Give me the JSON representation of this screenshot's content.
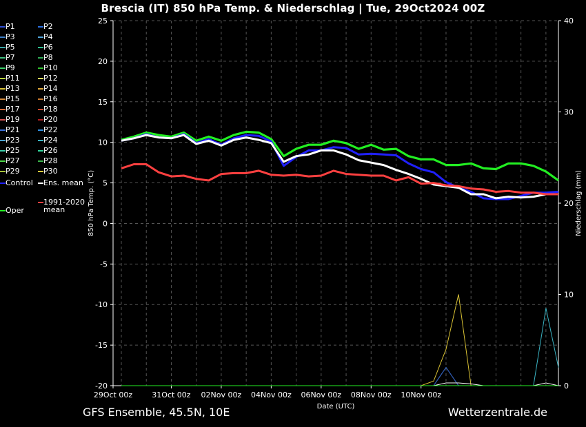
{
  "title": "Brescia  (IT)  850 hPa Temp. & Niederschlag | Tue, 29Oct2024 00Z",
  "footer_left": "GFS Ensemble, 45.5N, 10E",
  "footer_right": "Wetterzentrale.de",
  "chart_data": {
    "type": "line",
    "xlabel": "Date (UTC)",
    "ylabel": "850 hPa Temp. (°C)",
    "y2label": "Niederschlag (mm)",
    "ylim": [
      -20,
      25
    ],
    "y2lim": [
      0,
      40
    ],
    "yticks": [
      "25",
      "20",
      "15",
      "10",
      "5",
      "0",
      "-5",
      "-10",
      "-15",
      "-20"
    ],
    "y2ticks": [
      "40",
      "30",
      "20",
      "10",
      "0"
    ],
    "x_start": "29Oct 00z",
    "x_step_hours": 12,
    "xtick_labels": [
      "29Oct 00z",
      "31Oct 00z",
      "02Nov 00z",
      "04Nov 00z",
      "06Nov 00z",
      "08Nov 00z",
      "10Nov 00z"
    ],
    "grid": true,
    "legend": [
      {
        "name": "P1",
        "color": "#2f4fd6"
      },
      {
        "name": "P2",
        "color": "#2b6fe0"
      },
      {
        "name": "P3",
        "color": "#3d7fc8"
      },
      {
        "name": "P4",
        "color": "#4fa3d9"
      },
      {
        "name": "P5",
        "color": "#3aa7a7"
      },
      {
        "name": "P6",
        "color": "#2fbf8f"
      },
      {
        "name": "P7",
        "color": "#3fbf7f"
      },
      {
        "name": "P8",
        "color": "#2faa55"
      },
      {
        "name": "P9",
        "color": "#3ad06a"
      },
      {
        "name": "P10",
        "color": "#2fc02f"
      },
      {
        "name": "P11",
        "color": "#b6d43a"
      },
      {
        "name": "P12",
        "color": "#d8d85a"
      },
      {
        "name": "P13",
        "color": "#d9c234"
      },
      {
        "name": "P14",
        "color": "#e0a83a"
      },
      {
        "name": "P15",
        "color": "#d48a3c"
      },
      {
        "name": "P16",
        "color": "#c8782e"
      },
      {
        "name": "P17",
        "color": "#d96b3a"
      },
      {
        "name": "P18",
        "color": "#c84a2f"
      },
      {
        "name": "P19",
        "color": "#d85050"
      },
      {
        "name": "P20",
        "color": "#b02020"
      },
      {
        "name": "P21",
        "color": "#3a6fd8"
      },
      {
        "name": "P22",
        "color": "#2f8fe0"
      },
      {
        "name": "P23",
        "color": "#4aa3d0"
      },
      {
        "name": "P24",
        "color": "#3ab4c4"
      },
      {
        "name": "P25",
        "color": "#3acfaa"
      },
      {
        "name": "P26",
        "color": "#2fd49a"
      },
      {
        "name": "P27",
        "color": "#4fd94a"
      },
      {
        "name": "P28",
        "color": "#3ab44a"
      },
      {
        "name": "P29",
        "color": "#a8c43a"
      },
      {
        "name": "P30",
        "color": "#d8c83a"
      },
      {
        "name": "Control",
        "color": "#2020ff"
      },
      {
        "name": "Ens. mean",
        "color": "#ffffff"
      },
      {
        "name": "1991-2020 mean",
        "color": "#ff4040"
      },
      {
        "name": "Oper",
        "color": "#22ee22"
      }
    ],
    "series": [
      {
        "name": "Oper",
        "color": "#22ee22",
        "width": 3.2,
        "values": [
          10.3,
          10.7,
          11.2,
          10.9,
          10.7,
          11.2,
          10.2,
          10.7,
          10.2,
          10.9,
          11.3,
          11.2,
          10.4,
          8.3,
          9.2,
          9.7,
          9.7,
          10.2,
          9.9,
          9.2,
          9.7,
          9.1,
          9.2,
          8.3,
          7.9,
          7.9,
          7.2,
          7.2,
          7.4,
          6.8,
          6.7,
          7.4,
          7.4,
          7.1,
          6.4,
          5.3
        ]
      },
      {
        "name": "Control",
        "color": "#2020ff",
        "width": 3,
        "values": [
          10.2,
          10.5,
          11.0,
          10.6,
          10.5,
          11.0,
          9.9,
          10.4,
          9.7,
          10.5,
          10.9,
          10.8,
          10.1,
          7.1,
          8.2,
          9.0,
          9.0,
          9.4,
          9.3,
          8.5,
          8.6,
          8.5,
          8.4,
          7.4,
          6.7,
          6.3,
          5.1,
          4.4,
          3.9,
          3.1,
          3.0,
          3.0,
          3.4,
          3.8,
          3.8,
          3.9
        ]
      },
      {
        "name": "Ens. mean",
        "color": "#ffffff",
        "width": 3,
        "values": [
          10.2,
          10.5,
          10.9,
          10.6,
          10.5,
          10.9,
          9.8,
          10.2,
          9.6,
          10.3,
          10.6,
          10.3,
          9.9,
          7.6,
          8.3,
          8.5,
          9.0,
          9.0,
          8.5,
          7.8,
          7.5,
          7.2,
          6.6,
          6.1,
          5.5,
          4.8,
          4.6,
          4.4,
          3.6,
          3.6,
          3.1,
          3.3,
          3.2,
          3.3,
          3.6,
          3.6
        ]
      },
      {
        "name": "1991-2020 mean",
        "color": "#ff4040",
        "width": 3,
        "values": [
          6.8,
          7.3,
          7.3,
          6.3,
          5.8,
          5.9,
          5.5,
          5.3,
          6.1,
          6.2,
          6.2,
          6.5,
          6.0,
          5.9,
          6.0,
          5.8,
          5.9,
          6.5,
          6.1,
          6.0,
          5.9,
          5.9,
          5.3,
          5.7,
          4.9,
          5.0,
          4.7,
          4.6,
          4.3,
          4.2,
          3.9,
          4.0,
          3.8,
          3.8,
          3.6,
          3.6
        ]
      }
    ],
    "precip_series": [
      {
        "name": "P13",
        "color": "#d9c234",
        "values": [
          0,
          0,
          0,
          0,
          0,
          0,
          0,
          0,
          0,
          0,
          0,
          0,
          0,
          0,
          0,
          0,
          0,
          0,
          0,
          0,
          0,
          0,
          0,
          0,
          0,
          0.5,
          4,
          10,
          0,
          0,
          0,
          0,
          0,
          0,
          0,
          0
        ]
      },
      {
        "name": "P24",
        "color": "#3ab4c4",
        "values": [
          0,
          0,
          0,
          0,
          0,
          0,
          0,
          0,
          0,
          0,
          0,
          0,
          0,
          0,
          0,
          0,
          0,
          0,
          0,
          0,
          0,
          0,
          0,
          0,
          0,
          0,
          0,
          0,
          0,
          0,
          0,
          0,
          0,
          0,
          8.5,
          2
        ]
      },
      {
        "name": "P21",
        "color": "#3a6fd8",
        "values": [
          0,
          0,
          0,
          0,
          0,
          0,
          0,
          0,
          0,
          0,
          0,
          0,
          0,
          0,
          0,
          0,
          0,
          0,
          0,
          0,
          0,
          0,
          0,
          0,
          0,
          0,
          2,
          0,
          0,
          0,
          0,
          0,
          0,
          0,
          0,
          0
        ]
      },
      {
        "name": "Ens. mean",
        "color": "#ffffff",
        "values": [
          0,
          0,
          0,
          0,
          0,
          0,
          0,
          0,
          0,
          0,
          0,
          0,
          0,
          0,
          0,
          0,
          0,
          0,
          0,
          0,
          0,
          0,
          0,
          0,
          0,
          0,
          0.3,
          0.3,
          0.2,
          0,
          0,
          0,
          0,
          0,
          0.3,
          0
        ]
      },
      {
        "name": "Oper",
        "color": "#22ee22",
        "values": [
          0,
          0,
          0,
          0,
          0,
          0,
          0,
          0,
          0,
          0,
          0,
          0,
          0,
          0,
          0,
          0,
          0,
          0,
          0,
          0,
          0,
          0,
          0,
          0,
          0,
          0,
          0,
          0,
          0,
          0,
          0,
          0,
          0,
          0,
          0,
          0
        ]
      }
    ]
  }
}
